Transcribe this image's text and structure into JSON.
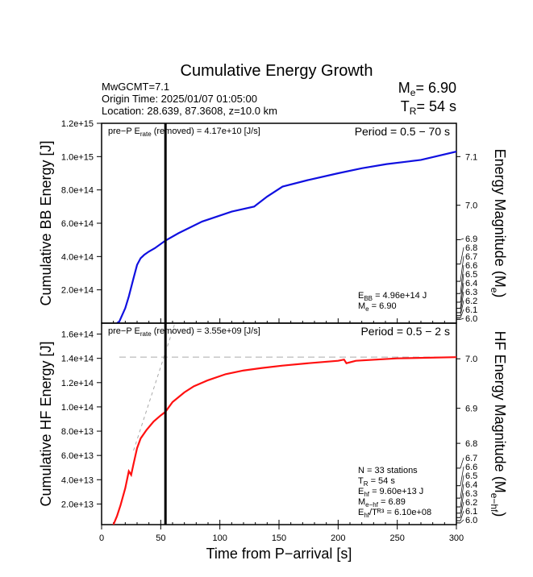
{
  "title": "Cumulative Energy Growth",
  "info": {
    "line1": "MwGCMT=7.1",
    "line2": "Origin Time: 2025/01/07 01:05:00",
    "line3": "Location: 28.639, 87.3608, z=10.0 km",
    "me_label": "M",
    "me_sub": "e",
    "me_value": "= 6.90",
    "tr_label": "T",
    "tr_sub": "R",
    "tr_value": "= 54 s"
  },
  "chart_data": [
    {
      "type": "line",
      "ylabel": "Cumulative BB Energy [J]",
      "y2label": "Energy Magnitude (M",
      "y2label_sub": "e",
      "y2label_end": ")",
      "ylim": [
        0,
        1200000000000000.0
      ],
      "xlim": [
        0,
        300
      ],
      "yticks": [
        "2.0e+14",
        "4.0e+14",
        "6.0e+14",
        "8.0e+14",
        "1.0e+15",
        "1.2e+15"
      ],
      "ytick_values": [
        200000000000000.0,
        400000000000000.0,
        600000000000000.0,
        800000000000000.0,
        1000000000000000.0,
        1200000000000000.0
      ],
      "y2ticks": [
        "6.0",
        "6.1",
        "6.2",
        "6.3",
        "6.4",
        "6.5",
        "6.6",
        "6.7",
        "6.8",
        "6.9",
        "7.0",
        "7.1"
      ],
      "magnitude_offset": 2.9,
      "color": "#1010e0",
      "x": [
        13,
        15,
        20,
        23,
        27,
        30,
        33,
        36,
        40,
        45,
        54,
        65,
        85,
        110,
        129,
        140,
        153,
        175,
        200,
        220,
        241,
        270,
        300
      ],
      "y": [
        0,
        10000000000000.0,
        90000000000000.0,
        160000000000000.0,
        270000000000000.0,
        350000000000000.0,
        390000000000000.0,
        410000000000000.0,
        430000000000000.0,
        450000000000000.0,
        496000000000000.0,
        540000000000000.0,
        610000000000000.0,
        670000000000000.0,
        700000000000000.0,
        760000000000000.0,
        820000000000000.0,
        860000000000000.0,
        900000000000000.0,
        930000000000000.0,
        955000000000000.0,
        980000000000000.0,
        1030000000000000.0
      ],
      "header_left": "pre−P E",
      "header_left_sub": "rate",
      "header_left_end": " (removed) = 4.17e+10 [J/s]",
      "period": "Period = 0.5 − 70 s",
      "annot": [
        {
          "main": "E",
          "sub": "BB",
          "rest": " = 4.96e+14 J"
        },
        {
          "main": "M",
          "sub": "e",
          "rest": " = 6.90"
        }
      ],
      "vline_x": 54
    },
    {
      "type": "line",
      "ylabel": "Cumulative HF Energy [J]",
      "y2label": "HF Energy Magnitude (M",
      "y2label_sub": "e−hf",
      "y2label_end": ")",
      "xlabel": "Time from P−arrival [s]",
      "ylim": [
        3000000000000.0,
        169000000000000.0
      ],
      "xlim": [
        0,
        300
      ],
      "xticks": [
        "0",
        "50",
        "100",
        "150",
        "200",
        "250",
        "300"
      ],
      "xtick_values": [
        0,
        50,
        100,
        150,
        200,
        250,
        300
      ],
      "yticks": [
        "2.0e+13",
        "4.0e+13",
        "6.0e+13",
        "8.0e+13",
        "1.0e+14",
        "1.2e+14",
        "1.4e+14",
        "1.6e+14"
      ],
      "ytick_values": [
        20000000000000.0,
        40000000000000.0,
        60000000000000.0,
        80000000000000.0,
        100000000000000.0,
        120000000000000.0,
        140000000000000.0,
        160000000000000.0
      ],
      "y2ticks": [
        "6.0",
        "6.1",
        "6.2",
        "6.3",
        "6.4",
        "6.5",
        "6.6",
        "6.7",
        "6.8",
        "6.9",
        "7.0"
      ],
      "magnitude_offset": 2.43,
      "color": "#ff1010",
      "x": [
        10,
        13,
        16,
        20,
        23,
        25,
        27,
        30,
        33,
        38,
        44,
        50,
        54,
        60,
        70,
        78,
        90,
        105,
        120,
        135,
        153,
        175,
        200,
        205,
        207,
        215,
        250,
        300
      ],
      "y": [
        3000000000000.0,
        10000000000000.0,
        19000000000000.0,
        33000000000000.0,
        47000000000000.0,
        44000000000000.0,
        53000000000000.0,
        66000000000000.0,
        74000000000000.0,
        81000000000000.0,
        88000000000000.0,
        93000000000000.0,
        96000000000000.0,
        104000000000000.0,
        112000000000000.0,
        117000000000000.0,
        122000000000000.0,
        127000000000000.0,
        130000000000000.0,
        132000000000000.0,
        134000000000000.0,
        136000000000000.0,
        138000000000000.0,
        139000000000000.0,
        136000000000000.0,
        138000000000000.0,
        140000000000000.0,
        141000000000000.0
      ],
      "plateau": 141000000000000.0,
      "tangent": {
        "x": [
          27,
          62
        ],
        "y": [
          64000000000000.0,
          169000000000000.0
        ]
      },
      "header_left": "pre−P E",
      "header_left_sub": "rate",
      "header_left_end": " (removed) = 3.55e+09 [J/s]",
      "period": "Period = 0.5 − 2 s",
      "annot": [
        {
          "main": "N = 33 stations",
          "sub": "",
          "rest": ""
        },
        {
          "main": "T",
          "sub": "R",
          "rest": " = 54  s"
        },
        {
          "main": "E",
          "sub": "hf",
          "rest": " = 9.60e+13 J"
        },
        {
          "main": "M",
          "sub": "e−hf",
          "rest": " = 6.89"
        },
        {
          "main": "E",
          "sub": "hf",
          "rest": "/Tᴿ³ =  6.10e+08"
        }
      ],
      "vline_x": 54
    }
  ]
}
